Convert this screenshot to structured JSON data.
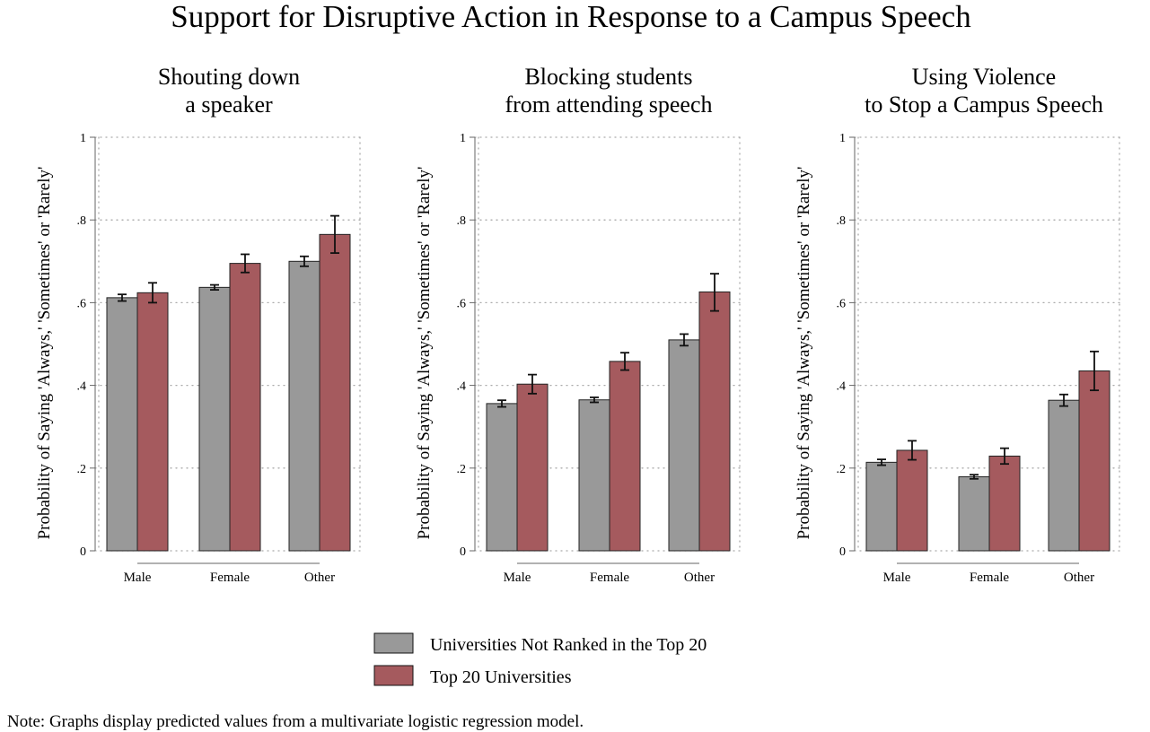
{
  "figure": {
    "title": "Support for Disruptive Action in Response to a Campus Speech",
    "note": "Note: Graphs display predicted values from a multivariate logistic regression model.",
    "colors": {
      "not_top20": "#999999",
      "top20": "#A55A5E",
      "error_bar": "#111111",
      "grid": "#aaaaaa",
      "axis": "#666666"
    }
  },
  "legend": [
    {
      "label": "Universities Not Ranked in the Top 20",
      "color": "#999999"
    },
    {
      "label": "Top 20 Universities",
      "color": "#A55A5E"
    }
  ],
  "chart_data": [
    {
      "type": "bar",
      "title_lines": [
        "Shouting down",
        "a speaker"
      ],
      "ylabel": "Probability of Saying 'Always,' 'Sometimes' or 'Rarely'",
      "ylim": [
        0,
        1
      ],
      "yticks": [
        0,
        0.2,
        0.4,
        0.6,
        0.8,
        1
      ],
      "ytick_labels": [
        "0",
        ".2",
        ".4",
        ".6",
        ".8",
        "1"
      ],
      "categories": [
        "Male",
        "Female",
        "Other"
      ],
      "series": [
        {
          "name": "Universities Not Ranked in the Top 20",
          "values": [
            0.612,
            0.637,
            0.7
          ],
          "ci_low": [
            0.604,
            0.631,
            0.688
          ],
          "ci_high": [
            0.62,
            0.643,
            0.712
          ]
        },
        {
          "name": "Top 20 Universities",
          "values": [
            0.624,
            0.695,
            0.765
          ],
          "ci_low": [
            0.6,
            0.673,
            0.72
          ],
          "ci_high": [
            0.648,
            0.717,
            0.81
          ]
        }
      ]
    },
    {
      "type": "bar",
      "title_lines": [
        "Blocking students",
        "from attending speech"
      ],
      "ylabel": "Probability of Saying 'Always,' 'Sometimes' or 'Rarely'",
      "ylim": [
        0,
        1
      ],
      "yticks": [
        0,
        0.2,
        0.4,
        0.6,
        0.8,
        1
      ],
      "ytick_labels": [
        "0",
        ".2",
        ".4",
        ".6",
        ".8",
        "1"
      ],
      "categories": [
        "Male",
        "Female",
        "Other"
      ],
      "series": [
        {
          "name": "Universities Not Ranked in the Top 20",
          "values": [
            0.356,
            0.365,
            0.51
          ],
          "ci_low": [
            0.348,
            0.359,
            0.496
          ],
          "ci_high": [
            0.364,
            0.371,
            0.524
          ]
        },
        {
          "name": "Top 20 Universities",
          "values": [
            0.403,
            0.458,
            0.626
          ],
          "ci_low": [
            0.38,
            0.437,
            0.58
          ],
          "ci_high": [
            0.426,
            0.479,
            0.67
          ]
        }
      ]
    },
    {
      "type": "bar",
      "title_lines": [
        "Using Violence",
        "to Stop a Campus Speech"
      ],
      "ylabel": "Probability of Saying 'Always,' 'Sometimes' or 'Rarely'",
      "ylim": [
        0,
        1
      ],
      "yticks": [
        0,
        0.2,
        0.4,
        0.6,
        0.8,
        1
      ],
      "ytick_labels": [
        "0",
        ".2",
        ".4",
        ".6",
        ".8",
        "1"
      ],
      "categories": [
        "Male",
        "Female",
        "Other"
      ],
      "series": [
        {
          "name": "Universities Not Ranked in the Top 20",
          "values": [
            0.214,
            0.179,
            0.364
          ],
          "ci_low": [
            0.207,
            0.174,
            0.35
          ],
          "ci_high": [
            0.221,
            0.184,
            0.378
          ]
        },
        {
          "name": "Top 20 Universities",
          "values": [
            0.243,
            0.229,
            0.435
          ],
          "ci_low": [
            0.22,
            0.21,
            0.388
          ],
          "ci_high": [
            0.266,
            0.248,
            0.482
          ]
        }
      ]
    }
  ]
}
